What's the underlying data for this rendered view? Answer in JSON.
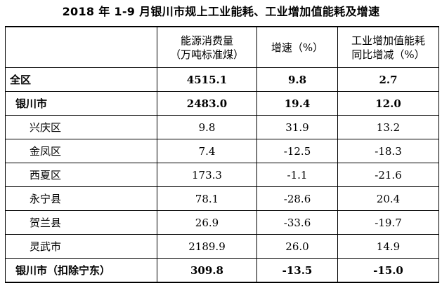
{
  "title": "2018 年 1-9 月银川市规上工业能耗、工业增加值能耗及增速",
  "table": {
    "headers": [
      "",
      "能源消费量\n（万吨标准煤）",
      "增速（%）",
      "工业增加值能耗\n同比增减（%）"
    ],
    "rows": [
      {
        "label": "全区",
        "level": 0,
        "bold": true,
        "values": [
          "4515.1",
          "9.8",
          "2.7"
        ]
      },
      {
        "label": "银川市",
        "level": 1,
        "bold": true,
        "values": [
          "2483.0",
          "19.4",
          "12.0"
        ]
      },
      {
        "label": "兴庆区",
        "level": 2,
        "bold": false,
        "values": [
          "9.8",
          "31.9",
          "13.2"
        ]
      },
      {
        "label": "金凤区",
        "level": 2,
        "bold": false,
        "values": [
          "7.4",
          "-12.5",
          "-18.3"
        ]
      },
      {
        "label": "西夏区",
        "level": 2,
        "bold": false,
        "values": [
          "173.3",
          "-1.1",
          "-21.6"
        ]
      },
      {
        "label": "永宁县",
        "level": 2,
        "bold": false,
        "values": [
          "78.1",
          "-28.6",
          "20.4"
        ]
      },
      {
        "label": "贺兰县",
        "level": 2,
        "bold": false,
        "values": [
          "26.9",
          "-33.6",
          "-19.7"
        ]
      },
      {
        "label": "灵武市",
        "level": 2,
        "bold": false,
        "values": [
          "2189.9",
          "26.0",
          "14.9"
        ]
      },
      {
        "label": "银川市（扣除宁东）",
        "level": 1,
        "bold": true,
        "values": [
          "309.8",
          "-13.5",
          "-15.0"
        ]
      }
    ]
  }
}
